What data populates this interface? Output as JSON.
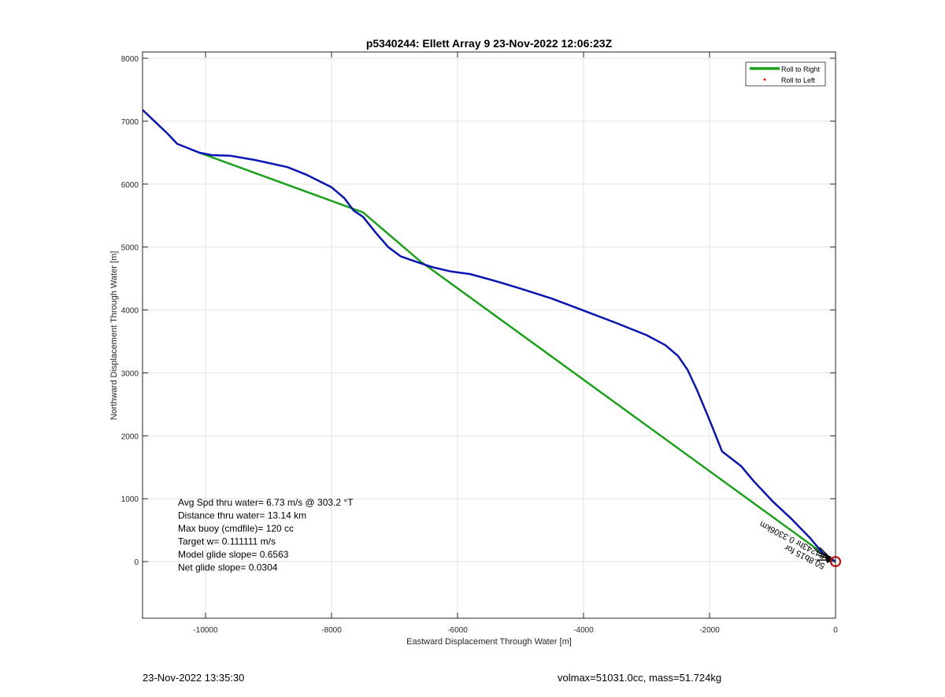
{
  "chart_data": {
    "type": "line",
    "title": "p5340244: Ellett Array 9 23-Nov-2022 12:06:23Z",
    "xlabel": "Eastward Displacement Through Water [m]",
    "ylabel": "Northward Displacement Through Water [m]",
    "xlim": [
      -11000,
      0
    ],
    "ylim": [
      -900,
      8100
    ],
    "xticks": [
      -10000,
      -8000,
      -6000,
      -4000,
      -2000,
      0
    ],
    "yticks": [
      0,
      1000,
      2000,
      3000,
      4000,
      5000,
      6000,
      7000,
      8000
    ],
    "grid": true,
    "legend": {
      "placement": "top-right",
      "entries": [
        {
          "label": "Roll to Right",
          "color": "#1aa31a",
          "marker": "line"
        },
        {
          "label": "Roll to Left",
          "color": "#ff0000",
          "marker": "dot"
        }
      ]
    },
    "series": [
      {
        "color": "#0a14b4",
        "x": [
          -11000,
          -10800,
          -10600,
          -10450,
          -10300,
          -10100,
          -9900,
          -9600,
          -9200,
          -8700,
          -8400,
          -8000,
          -7800,
          -7650,
          -7500,
          -7300,
          -7100,
          -6900,
          -6700,
          -6400,
          -6100,
          -5800,
          -5400,
          -5000,
          -4500,
          -4000,
          -3500,
          -3000,
          -2700,
          -2500,
          -2350,
          -2200,
          -2000,
          -1800,
          -1500,
          -1300,
          -1000,
          -700,
          -400,
          -200,
          0
        ],
        "y": [
          7180,
          6990,
          6800,
          6640,
          6580,
          6500,
          6460,
          6450,
          6380,
          6270,
          6150,
          5950,
          5780,
          5580,
          5480,
          5230,
          5000,
          4850,
          4780,
          4680,
          4610,
          4570,
          4460,
          4340,
          4180,
          3990,
          3800,
          3600,
          3440,
          3270,
          3050,
          2730,
          2250,
          1750,
          1520,
          1280,
          960,
          680,
          370,
          130,
          0
        ]
      },
      {
        "color": "#1aa31a",
        "x": [
          -10100,
          -7500,
          -6600,
          -200,
          0
        ],
        "y": [
          6500,
          5550,
          4780,
          130,
          0
        ]
      }
    ],
    "annotations": [
      "Avg Spd thru water=  6.73 m/s @ 303.2 °T",
      "Distance thru water= 13.14 km",
      "Max buoy (cmdfile)= 120 cc",
      "Target w= 0.111111 m/s",
      "Model glide slope= 0.6563",
      "Net glide slope= 0.0304"
    ],
    "arrow_label": "0.54243hr   0.3306km",
    "arrow_label_overlap": "50.8b15 for",
    "end_marker": {
      "x": 0,
      "y": 0,
      "color": "#cc0000"
    }
  },
  "footer": {
    "timestamp": "23-Nov-2022 13:35:30",
    "info": "volmax=51031.0cc, mass=51.724kg"
  }
}
